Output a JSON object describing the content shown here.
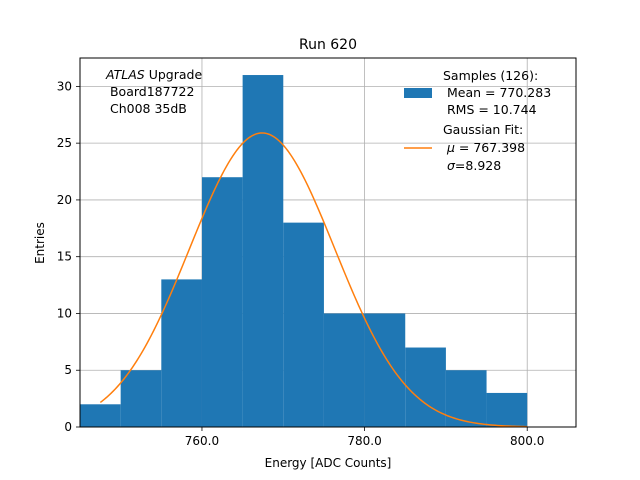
{
  "chart_data": {
    "type": "bar",
    "title": "Run 620",
    "xlabel": "Energy [ADC Counts]",
    "ylabel": "Entries",
    "xlim": [
      745,
      806
    ],
    "ylim": [
      0,
      32.5
    ],
    "xticks": [
      760,
      780,
      800
    ],
    "xtick_labels": [
      "760.0",
      "780.0",
      "800.0"
    ],
    "yticks": [
      0,
      5,
      10,
      15,
      20,
      25,
      30
    ],
    "ytick_labels": [
      "0",
      "5",
      "10",
      "15",
      "20",
      "25",
      "30"
    ],
    "grid": true,
    "bar_color": "#1f77b4",
    "fit_color": "#ff7f0e",
    "bins": [
      745,
      750,
      755,
      760,
      765,
      770,
      775,
      780,
      785,
      790,
      795,
      800
    ],
    "counts": [
      2,
      5,
      13,
      22,
      31,
      18,
      10,
      10,
      7,
      5,
      3
    ],
    "fit": {
      "mu": 767.398,
      "sigma": 8.928,
      "amplitude": 25.9,
      "x_start": 747.5,
      "x_end": 800
    },
    "annotation": {
      "italic": "ATLAS",
      "line1_rest": " Upgrade",
      "line2": " Board187722",
      "line3": " Ch008 35dB"
    },
    "legend": {
      "position": "upper right",
      "samples_title": "Samples (126):",
      "samples_mean": " Mean = 770.283",
      "samples_rms": " RMS = 10.744",
      "fit_title": "Gaussian Fit:",
      "fit_mu_symbol": "μ",
      "fit_mu_text": " = 767.398",
      "fit_sigma_symbol": "σ",
      "fit_sigma_text": "=8.928"
    }
  }
}
